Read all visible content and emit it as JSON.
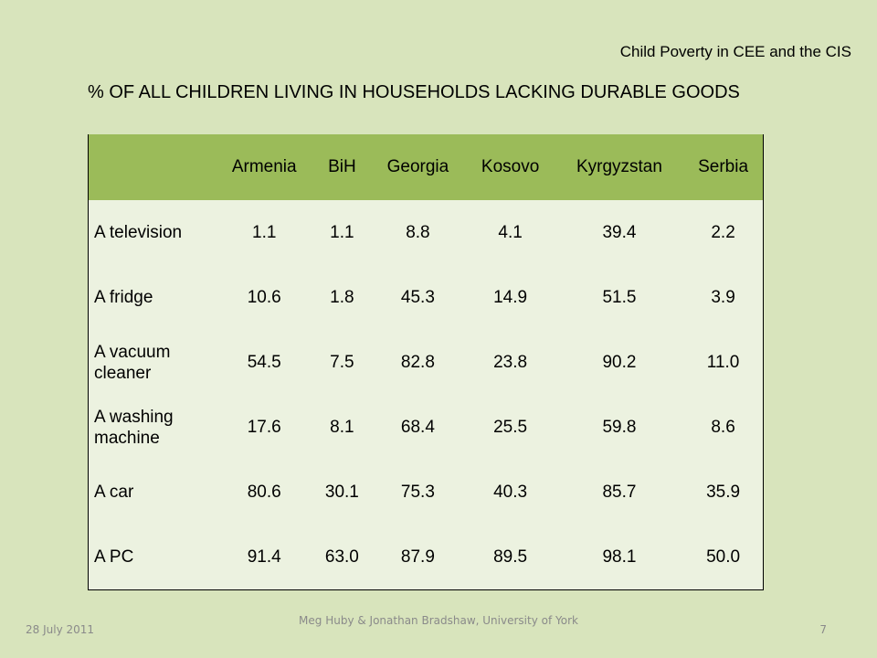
{
  "header": {
    "right_text": "Child Poverty in CEE and the CIS"
  },
  "title": "% OF ALL CHILDREN LIVING IN HOUSEHOLDS LACKING DURABLE GOODS",
  "table": {
    "columns": [
      "",
      "Armenia",
      "BiH",
      "Georgia",
      "Kosovo",
      "Kyrgyzstan",
      "Serbia"
    ],
    "rows": [
      [
        "A television",
        "1.1",
        "1.1",
        "8.8",
        "4.1",
        "39.4",
        "2.2"
      ],
      [
        "A fridge",
        "10.6",
        "1.8",
        "45.3",
        "14.9",
        "51.5",
        "3.9"
      ],
      [
        "A vacuum cleaner",
        "54.5",
        "7.5",
        "82.8",
        "23.8",
        "90.2",
        "11.0"
      ],
      [
        "A washing machine",
        "17.6",
        "8.1",
        "68.4",
        "25.5",
        "59.8",
        "8.6"
      ],
      [
        "A car",
        "80.6",
        "30.1",
        "75.3",
        "40.3",
        "85.7",
        "35.9"
      ],
      [
        "A PC",
        "91.4",
        "63.0",
        "87.9",
        "89.5",
        "98.1",
        "50.0"
      ]
    ]
  },
  "footer": {
    "date": "28 July 2011",
    "center": "Meg Huby & Jonathan Bradshaw, University of York",
    "page": "7"
  },
  "colors": {
    "background": "#d8e4bc",
    "header_fill": "#9bbb59",
    "cell_fill": "#ecf2e0"
  }
}
